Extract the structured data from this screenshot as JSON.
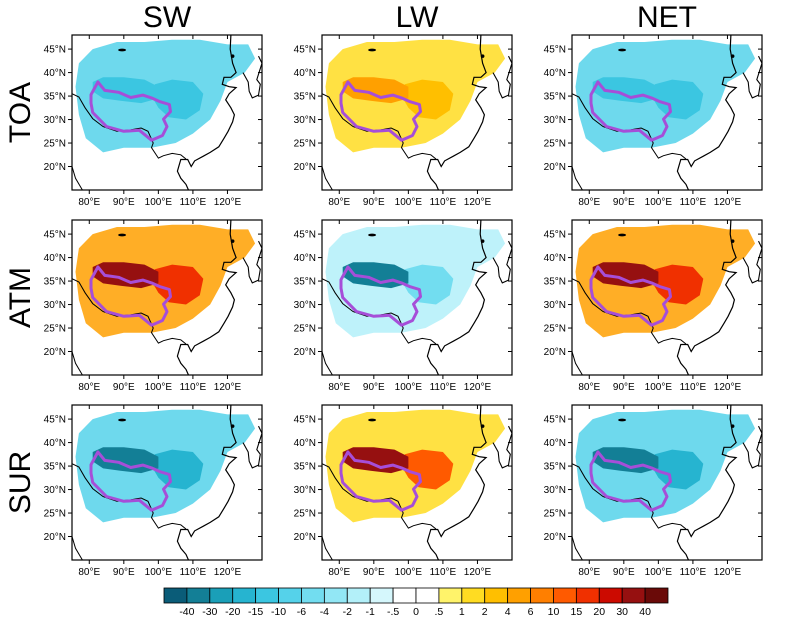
{
  "columns": [
    "SW",
    "LW",
    "NET"
  ],
  "rows": [
    "TOA",
    "ATM",
    "SUR"
  ],
  "lat_ticks": [
    "45°N",
    "40°N",
    "35°N",
    "30°N",
    "25°N",
    "20°N"
  ],
  "lon_ticks": [
    "80°E",
    "90°E",
    "100°E",
    "110°E",
    "120°E"
  ],
  "colorbar": {
    "labels": [
      "-40",
      "-30",
      "-20",
      "-15",
      "-10",
      "-6",
      "-4",
      "-2",
      "-1",
      "-.5",
      "0",
      ".5",
      "1",
      "2",
      "4",
      "6",
      "10",
      "15",
      "20",
      "30",
      "40"
    ],
    "colors": [
      "#0a5c78",
      "#137f96",
      "#1a9fb8",
      "#26b4d0",
      "#3bc6e1",
      "#55d2ea",
      "#72ddf0",
      "#92e7f5",
      "#b3f0f9",
      "#d5f7fc",
      "#ffffff",
      "#ffffff",
      "#fff36a",
      "#ffdc22",
      "#ffbf00",
      "#ffa000",
      "#ff7f00",
      "#ff5a00",
      "#f03000",
      "#cc0a00",
      "#961010",
      "#6a0a08"
    ]
  },
  "panels": [
    [
      {
        "base": "#55d2ea",
        "blob1": "#3bc6e1",
        "blob2": "#3bc6e1"
      },
      {
        "base": "#ffdc22",
        "blob1": "#ffa000",
        "blob2": "#ffbf00"
      },
      {
        "base": "#55d2ea",
        "blob1": "#3bc6e1",
        "blob2": "#3bc6e1"
      }
    ],
    [
      {
        "base": "#ffa000",
        "blob1": "#961010",
        "blob2": "#f03000"
      },
      {
        "base": "#b3f0f9",
        "blob1": "#137f96",
        "blob2": "#72ddf0"
      },
      {
        "base": "#ffa000",
        "blob1": "#961010",
        "blob2": "#f03000"
      }
    ],
    [
      {
        "base": "#55d2ea",
        "blob1": "#137f96",
        "blob2": "#26b4d0"
      },
      {
        "base": "#ffdc22",
        "blob1": "#961010",
        "blob2": "#ff5a00"
      },
      {
        "base": "#55d2ea",
        "blob1": "#137f96",
        "blob2": "#26b4d0"
      }
    ]
  ],
  "plateau_outline_color": "#a64ed8"
}
